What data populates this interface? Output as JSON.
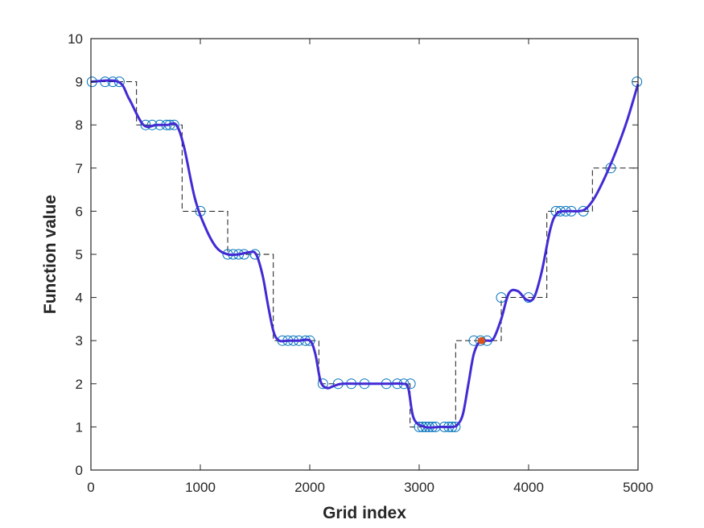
{
  "chart_data": {
    "type": "line",
    "title": "",
    "xlabel": "Grid index",
    "ylabel": "Function value",
    "xlim": [
      0,
      5000
    ],
    "ylim": [
      0,
      10
    ],
    "grid": false,
    "legend": "none",
    "x_ticks": [
      "0",
      "1000",
      "2000",
      "3000",
      "4000",
      "5000"
    ],
    "y_ticks": [
      "0",
      "1",
      "2",
      "3",
      "4",
      "5",
      "6",
      "7",
      "8",
      "9",
      "10"
    ],
    "series": [
      {
        "style": "step-dashed",
        "color": "#000000",
        "x": [
          0,
          417,
          417,
          833,
          833,
          1250,
          1250,
          1667,
          1667,
          2083,
          2083,
          2500,
          2500,
          2917,
          2917,
          3333,
          3333,
          3750,
          3750,
          4167,
          4167,
          4583,
          4583,
          5000
        ],
        "y": [
          9,
          9,
          8,
          8,
          6,
          6,
          5,
          5,
          3,
          3,
          2,
          2,
          2,
          2,
          1,
          1,
          3,
          3,
          4,
          4,
          6,
          6,
          7,
          7
        ]
      },
      {
        "style": "markers",
        "color": "#0072BD",
        "x": [
          10,
          130,
          200,
          260,
          500,
          560,
          630,
          690,
          720,
          760,
          1000,
          1250,
          1300,
          1350,
          1400,
          1500,
          1750,
          1800,
          1850,
          1900,
          1960,
          2000,
          2120,
          2260,
          2380,
          2500,
          2700,
          2800,
          2860,
          2920,
          3000,
          3030,
          3060,
          3090,
          3120,
          3150,
          3230,
          3270,
          3300,
          3330,
          3500,
          3560,
          3620,
          3750,
          4000,
          4250,
          4290,
          4340,
          4390,
          4500,
          4750,
          4990
        ],
        "y": [
          9,
          9,
          9,
          9,
          8,
          8,
          8,
          8,
          8,
          8,
          6,
          5,
          5,
          5,
          5,
          5,
          3,
          3,
          3,
          3,
          3,
          3,
          2,
          2,
          2,
          2,
          2,
          2,
          2,
          2,
          1,
          1,
          1,
          1,
          1,
          1,
          1,
          1,
          1,
          1,
          3,
          3,
          3,
          4,
          4,
          6,
          6,
          6,
          6,
          6,
          7,
          9
        ]
      },
      {
        "style": "smooth",
        "color": "#2E2EE6",
        "x": [
          0,
          250,
          350,
          480,
          600,
          700,
          780,
          850,
          950,
          1050,
          1150,
          1250,
          1350,
          1450,
          1510,
          1570,
          1620,
          1670,
          1720,
          1800,
          1900,
          2000,
          2050,
          2100,
          2160,
          2220,
          2300,
          2500,
          2700,
          2850,
          2900,
          2950,
          3050,
          3200,
          3300,
          3350,
          3400,
          3450,
          3500,
          3560,
          3620,
          3680,
          3750,
          3820,
          3900,
          3980,
          4050,
          4120,
          4200,
          4260,
          4350,
          4450,
          4520,
          4600,
          4700,
          4800,
          4900,
          5000
        ],
        "y": [
          9,
          9,
          8.6,
          8.0,
          8.0,
          8.0,
          8.0,
          7.5,
          6.3,
          5.6,
          5.15,
          5.0,
          5.0,
          5.05,
          5.0,
          4.5,
          3.8,
          3.2,
          3.0,
          3.0,
          3.0,
          3.0,
          2.7,
          2.05,
          1.9,
          1.95,
          2.0,
          2.0,
          2.0,
          2.0,
          1.9,
          1.2,
          1.0,
          1.0,
          1.0,
          1.05,
          1.3,
          2.0,
          2.7,
          3.0,
          3.0,
          3.05,
          3.5,
          4.1,
          4.15,
          3.95,
          4.0,
          4.6,
          5.6,
          5.95,
          6.0,
          6.0,
          6.05,
          6.3,
          6.8,
          7.4,
          8.1,
          8.95
        ]
      },
      {
        "style": "highlight-point",
        "color": "#D95319",
        "x": [
          3570
        ],
        "y": [
          3
        ]
      }
    ]
  }
}
